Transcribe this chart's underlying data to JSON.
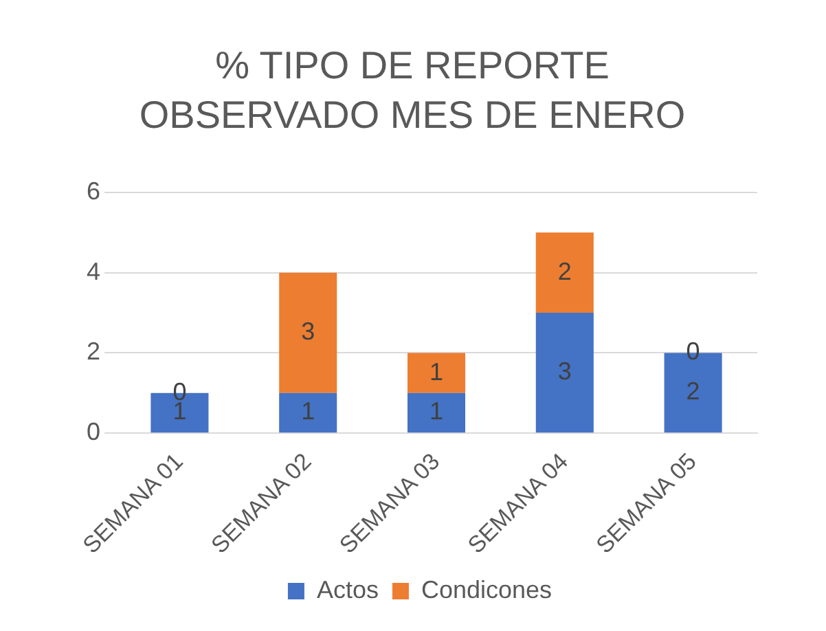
{
  "chart_data": {
    "type": "bar",
    "title": "% TIPO DE REPORTE OBSERVADO MES DE ENERO",
    "categories": [
      "SEMANA 01",
      "SEMANA 02",
      "SEMANA 03",
      "SEMANA 04",
      "SEMANA 05"
    ],
    "stacked": true,
    "series": [
      {
        "name": "Actos",
        "color": "#4472c4",
        "values": [
          1,
          1,
          1,
          3,
          2
        ]
      },
      {
        "name": "Condicones",
        "color": "#ed7d31",
        "values": [
          0,
          3,
          1,
          2,
          0
        ]
      }
    ],
    "ylim": [
      0,
      6
    ],
    "yticks": [
      0,
      2,
      4,
      6
    ],
    "grid": "y",
    "legend": "bottom",
    "data_labels": true
  }
}
